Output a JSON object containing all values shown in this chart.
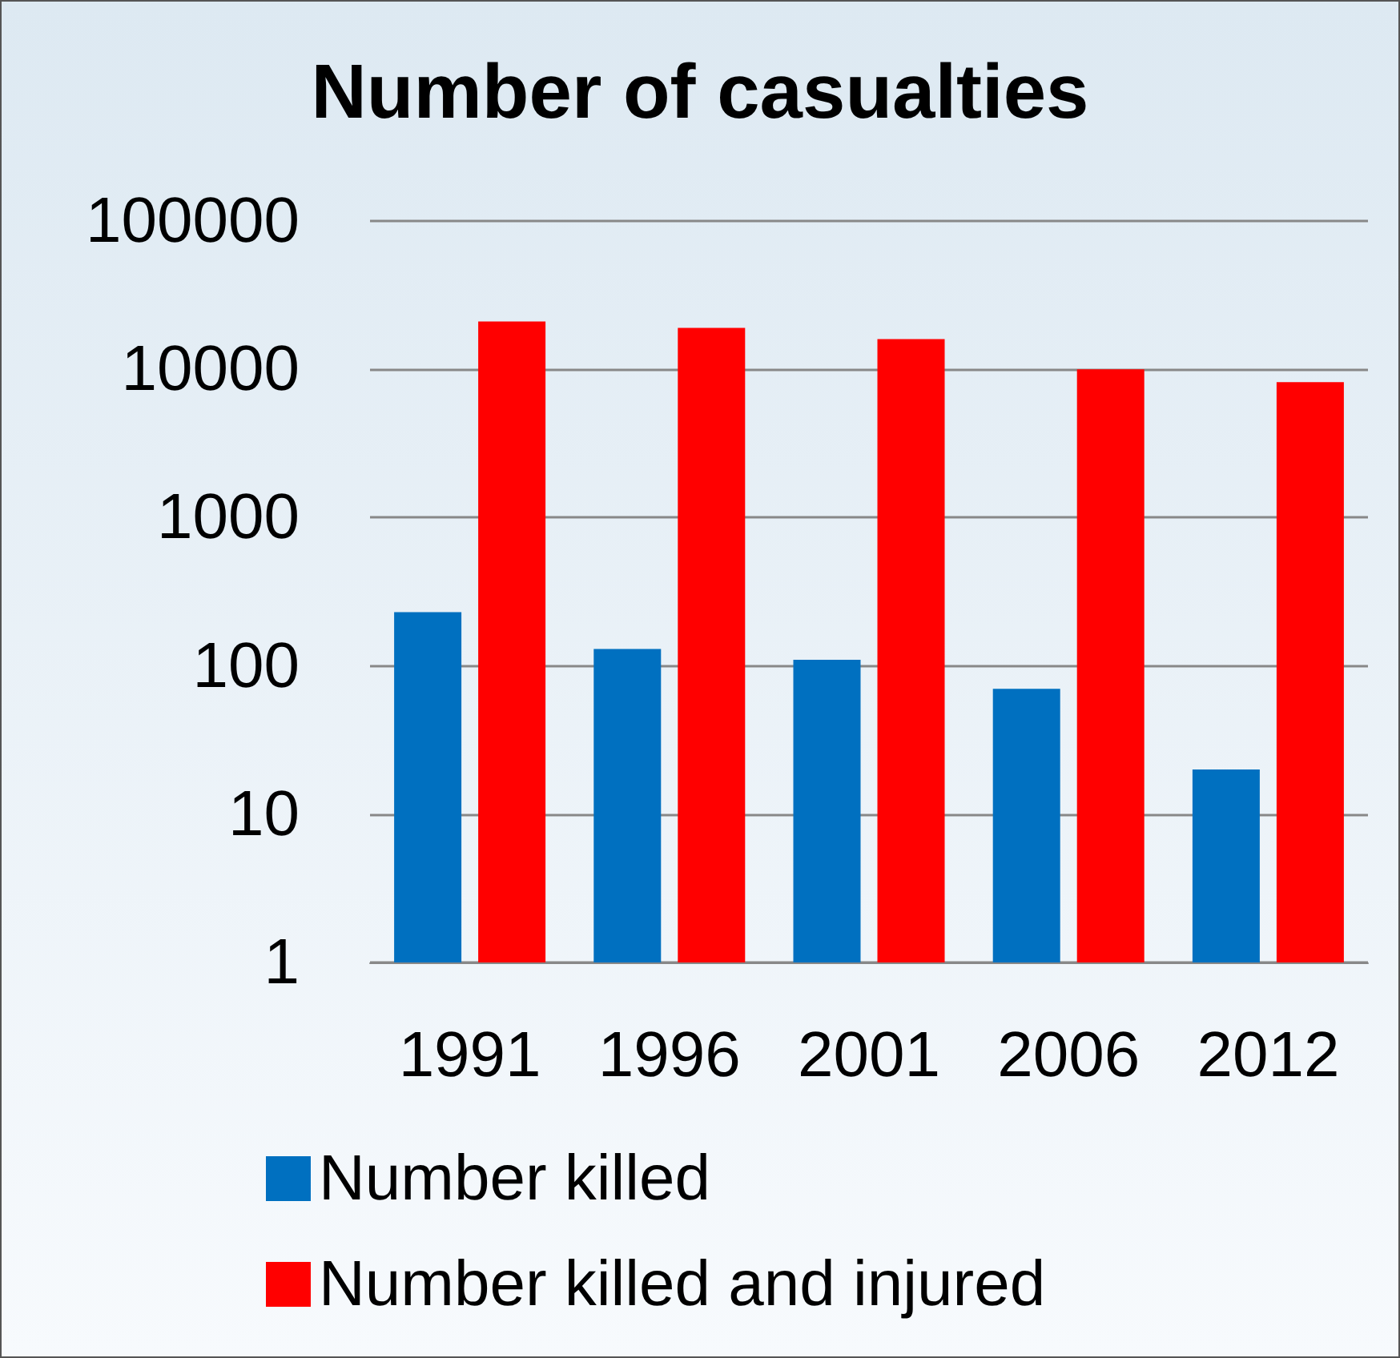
{
  "chart_data": {
    "type": "bar",
    "title": "Number of casualties",
    "categories": [
      "1991",
      "1996",
      "2001",
      "2006",
      "2012"
    ],
    "series": [
      {
        "name": "Number killed",
        "color": "#0070c0",
        "values": [
          230,
          130,
          110,
          70,
          20
        ]
      },
      {
        "name": "Number killed and injured",
        "color": "#ff0000",
        "values": [
          21000,
          19000,
          16000,
          10000,
          8200
        ]
      }
    ],
    "log": "y",
    "ylim": [
      1,
      100000
    ],
    "yticks": [
      1,
      10,
      100,
      1000,
      10000,
      100000
    ],
    "grid": "y",
    "legend": "bottom"
  }
}
